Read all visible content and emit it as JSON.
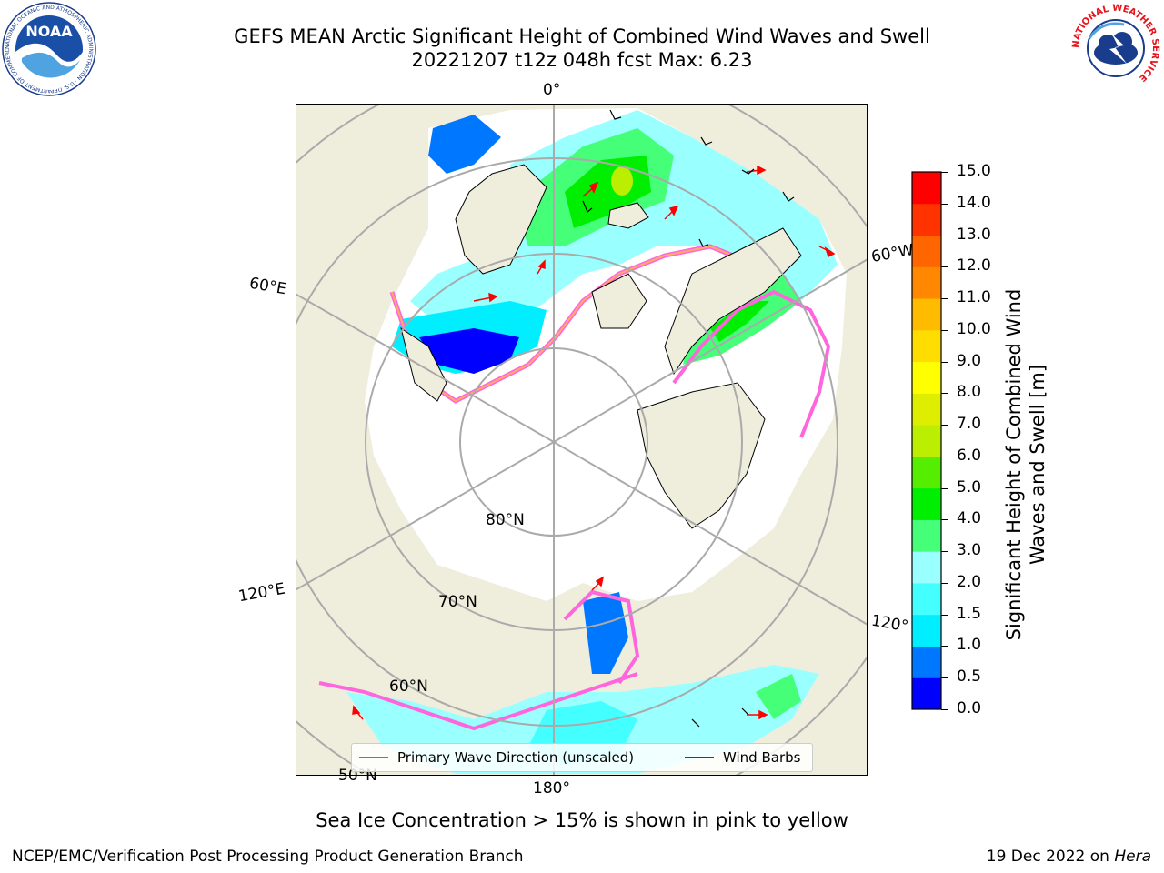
{
  "title_line1": "GEFS MEAN Arctic Significant Height of Combined Wind Waves and Swell",
  "title_line2": "20221207 t12z 048h fcst   Max: 6.23",
  "logos": {
    "noaa_text": "NOAA",
    "noaa_ring": "NATIONAL OCEANIC AND ATMOSPHERIC ADMINISTRATION · U.S. DEPARTMENT OF COMMERCE",
    "nws_ring": "NATIONAL WEATHER SERVICE"
  },
  "map": {
    "projection": "north-polar-stereographic",
    "colors": {
      "land": "#efeedd",
      "ocean_calm": "#ffffff",
      "grid": "#aaaaaa"
    },
    "meridian_labels": {
      "m0": "0°",
      "m60e": "60°E",
      "m60w": "60°W",
      "m120e": "120°E",
      "m120w": "120°",
      "m180": "180°"
    },
    "parallel_labels": {
      "p80": "80°N",
      "p70": "70°N",
      "p60": "60°N",
      "p50": "50°N"
    }
  },
  "legend": {
    "wave_direction": "Primary Wave Direction (unscaled)",
    "wind_barbs": "Wind Barbs",
    "wave_color": "#ff0000",
    "barb_color": "#000000"
  },
  "colorbar": {
    "label": "Significant Height of Combined Wind Waves and Swell [m]",
    "ticks": [
      "0.0",
      "0.5",
      "1.0",
      "1.5",
      "2.0",
      "3.0",
      "4.0",
      "5.0",
      "6.0",
      "7.0",
      "8.0",
      "9.0",
      "10.0",
      "11.0",
      "12.0",
      "13.0",
      "14.0",
      "15.0"
    ],
    "colors": [
      "#0000ff",
      "#0077ff",
      "#00eeff",
      "#44ffff",
      "#99ffff",
      "#44ff77",
      "#00ee00",
      "#55ee00",
      "#bbee00",
      "#ddee00",
      "#ffff00",
      "#ffdd00",
      "#ffbb00",
      "#ff8800",
      "#ff6600",
      "#ff3300",
      "#ff0000"
    ]
  },
  "note": "Sea Ice Concentration > 15% is shown in pink to yellow",
  "footer_left": "NCEP/EMC/Verification Post Processing Product Generation Branch",
  "footer_date": "19 Dec 2022 on ",
  "footer_host": "Hera",
  "chart_data": {
    "type": "heatmap",
    "title": "GEFS MEAN Arctic Significant Height of Combined Wind Waves and Swell",
    "subtitle": "20221207 t12z 048h fcst   Max: 6.23",
    "units": "m",
    "max_value": 6.23,
    "color_scale_range": [
      0.0,
      15.0
    ],
    "boundaries": [
      0.0,
      0.5,
      1.0,
      1.5,
      2.0,
      3.0,
      4.0,
      5.0,
      6.0,
      7.0,
      8.0,
      9.0,
      10.0,
      11.0,
      12.0,
      13.0,
      14.0,
      15.0
    ],
    "colorbar_label": "Significant Height of Combined Wind Waves and Swell [m]",
    "overlays": [
      "Primary Wave Direction (unscaled)",
      "Wind Barbs"
    ]
  }
}
